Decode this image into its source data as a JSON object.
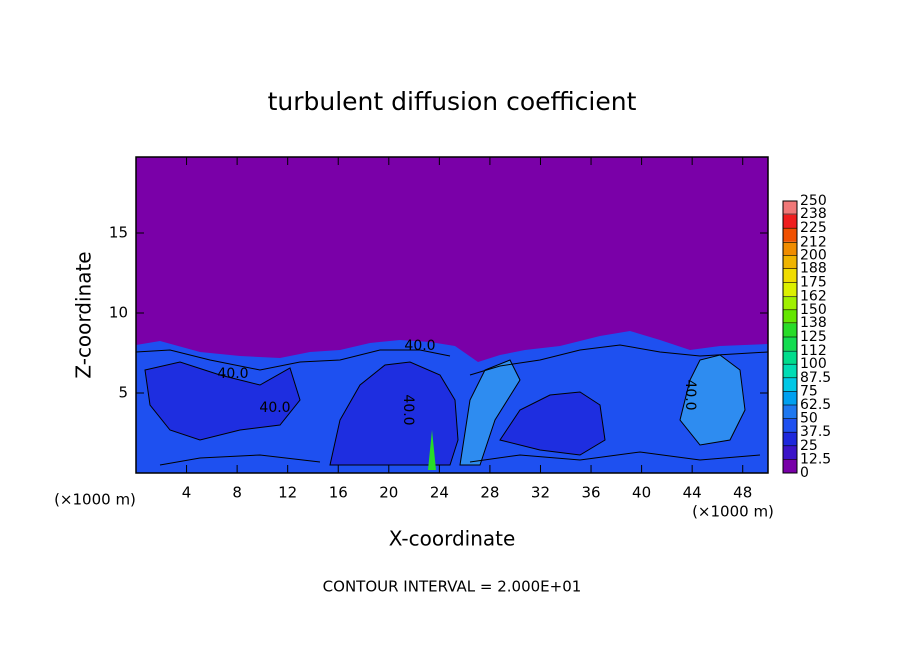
{
  "chart_data": {
    "type": "contour",
    "title": "turbulent diffusion coefficient",
    "x_label": "X-coordinate",
    "y_label": "Z-coordinate",
    "x_unit_left": "(×1000 m)",
    "x_unit_right": "(×1000 m)",
    "footnote": "CONTOUR INTERVAL = 2.000E+01",
    "contour_labels": [
      "40.0",
      "40.0",
      "40.0",
      "40.0",
      "40.0"
    ],
    "xlim": [
      0,
      50
    ],
    "xticks": [
      4,
      8,
      12,
      16,
      20,
      24,
      28,
      32,
      36,
      40,
      44,
      48
    ],
    "ylim": [
      0,
      19.75
    ],
    "yticks": [
      5,
      10,
      15
    ],
    "clim": [
      0,
      250
    ],
    "colorbar_ticks": [
      0,
      12.5,
      25,
      37.5,
      50,
      62.5,
      75,
      87.5,
      100,
      112,
      125,
      138,
      150,
      162,
      175,
      188,
      200,
      212,
      225,
      238,
      250
    ],
    "colorbar_colors": [
      "#7800a8",
      "#3c14c8",
      "#1e28dc",
      "#1e50f0",
      "#1e78f0",
      "#00a0f0",
      "#00c8e6",
      "#00dcb4",
      "#00dc8c",
      "#14dc50",
      "#28dc28",
      "#64e600",
      "#a0f000",
      "#dcf000",
      "#f0dc00",
      "#f0b400",
      "#f08c00",
      "#f05000",
      "#f01e1e",
      "#f07878"
    ]
  }
}
